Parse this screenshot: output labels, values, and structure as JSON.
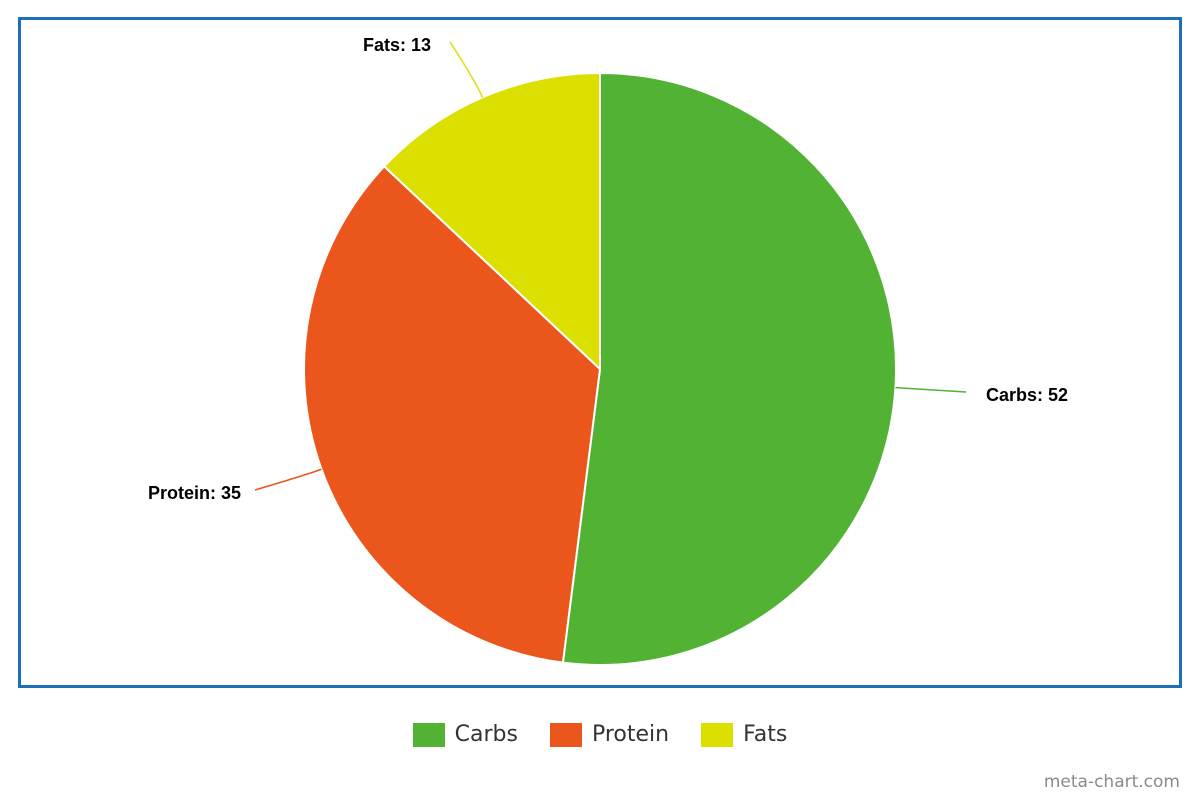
{
  "chart_data": {
    "type": "pie",
    "categories": [
      "Carbs",
      "Protein",
      "Fats"
    ],
    "values": [
      52,
      35,
      13
    ],
    "colors": [
      "#52b233",
      "#ea561c",
      "#dbe000"
    ],
    "labels": [
      "Carbs: 52",
      "Protein: 35",
      "Fats: 13"
    ],
    "legend": "bottom-center",
    "border_color": "#1d70b8"
  },
  "watermark": "meta-chart.com"
}
